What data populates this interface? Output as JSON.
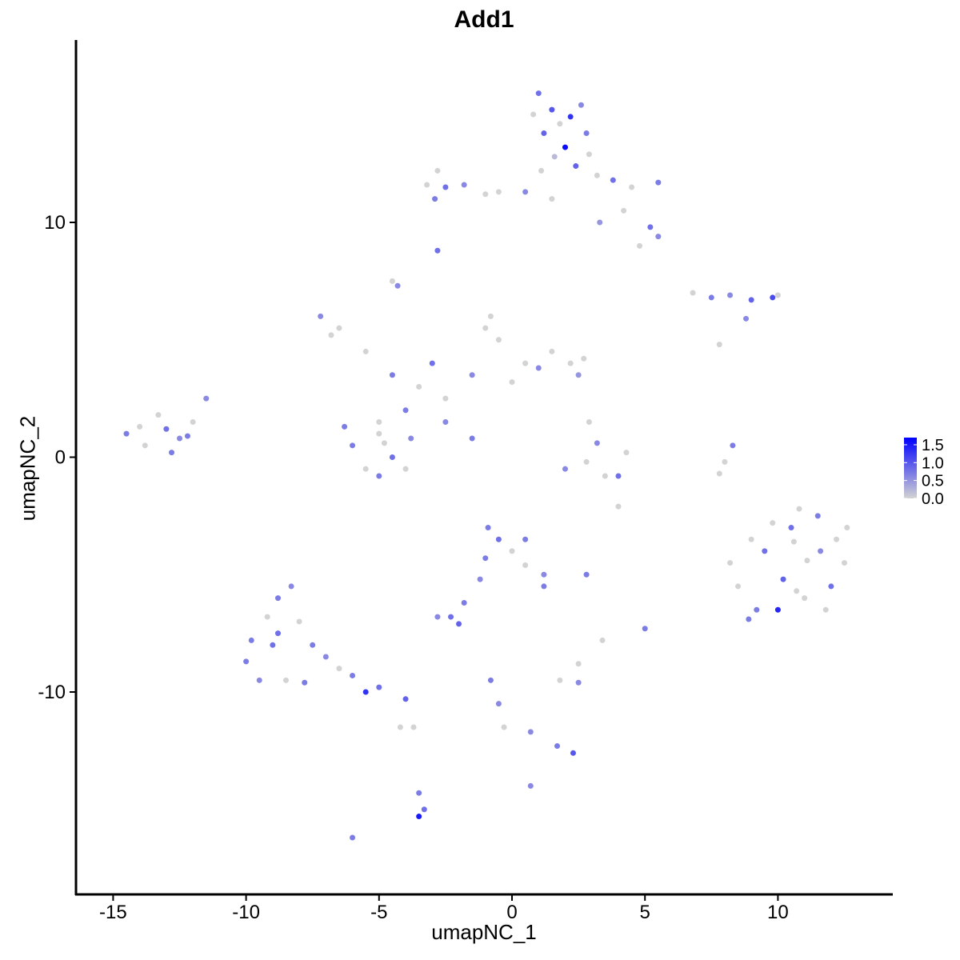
{
  "chart_data": {
    "type": "scatter",
    "title": "Add1",
    "xlabel": "umapNC_1",
    "ylabel": "umapNC_2",
    "xlim": [
      -16.4,
      14.3
    ],
    "ylim": [
      -18.6,
      17.8
    ],
    "xticks": [
      -15,
      -10,
      -5,
      0,
      5,
      10
    ],
    "yticks": [
      -10,
      0,
      10
    ],
    "xtick_labels": [
      "-15",
      "-10",
      "-5",
      "0",
      "5",
      "10"
    ],
    "ytick_labels": [
      "-10",
      "0",
      "10"
    ],
    "grid": false,
    "color_scale": {
      "low": "#D3D3D3",
      "high": "#0000FF",
      "min": 0,
      "max": 1.7
    },
    "legend": {
      "placement": "right",
      "ticks": [
        0.0,
        0.5,
        1.0,
        1.5
      ],
      "tick_labels": [
        "0.0",
        "0.5",
        "1.0",
        "1.5"
      ]
    },
    "points": [
      [
        1.0,
        15.5,
        0.8
      ],
      [
        1.5,
        14.8,
        1.0
      ],
      [
        2.2,
        14.5,
        1.3
      ],
      [
        2.6,
        15.0,
        0.6
      ],
      [
        1.2,
        13.8,
        0.9
      ],
      [
        2.0,
        13.2,
        1.6
      ],
      [
        2.8,
        13.8,
        0.7
      ],
      [
        1.6,
        12.8,
        0.2
      ],
      [
        2.4,
        12.4,
        0.9
      ],
      [
        3.2,
        12.0,
        0.0
      ],
      [
        3.8,
        11.8,
        0.8
      ],
      [
        4.5,
        11.5,
        0.0
      ],
      [
        5.5,
        11.7,
        0.7
      ],
      [
        4.2,
        10.5,
        0.0
      ],
      [
        5.2,
        9.8,
        0.8
      ],
      [
        5.5,
        9.4,
        0.6
      ],
      [
        4.8,
        9.0,
        0.0
      ],
      [
        3.3,
        10.0,
        0.5
      ],
      [
        1.5,
        11.0,
        0.0
      ],
      [
        0.5,
        11.3,
        0.6
      ],
      [
        -0.5,
        11.3,
        0.0
      ],
      [
        -1.0,
        11.2,
        0.0
      ],
      [
        1.8,
        14.2,
        0.0
      ],
      [
        0.8,
        14.6,
        0.0
      ],
      [
        2.9,
        12.9,
        0.0
      ],
      [
        1.1,
        12.2,
        0.0
      ],
      [
        -2.8,
        12.2,
        0.0
      ],
      [
        -2.5,
        11.5,
        0.8
      ],
      [
        -1.8,
        11.6,
        0.6
      ],
      [
        -2.9,
        11.0,
        0.7
      ],
      [
        -3.2,
        11.6,
        0.0
      ],
      [
        -2.8,
        8.8,
        0.8
      ],
      [
        -4.5,
        7.5,
        0.0
      ],
      [
        -4.3,
        7.3,
        0.6
      ],
      [
        6.8,
        7.0,
        0.0
      ],
      [
        7.5,
        6.8,
        0.7
      ],
      [
        8.2,
        6.9,
        0.6
      ],
      [
        9.0,
        6.7,
        0.9
      ],
      [
        9.8,
        6.8,
        1.1
      ],
      [
        8.8,
        5.9,
        0.6
      ],
      [
        10.0,
        6.9,
        0.0
      ],
      [
        -7.2,
        6.0,
        0.6
      ],
      [
        -6.5,
        5.5,
        0.0
      ],
      [
        -5.5,
        4.5,
        0.0
      ],
      [
        -4.5,
        3.5,
        0.7
      ],
      [
        -3.5,
        3.0,
        0.0
      ],
      [
        -2.5,
        2.5,
        0.0
      ],
      [
        -1.5,
        3.5,
        0.6
      ],
      [
        -1.0,
        5.5,
        0.0
      ],
      [
        -0.5,
        5.0,
        0.0
      ],
      [
        0.5,
        4.0,
        0.0
      ],
      [
        1.5,
        4.5,
        0.0
      ],
      [
        2.2,
        4.0,
        0.0
      ],
      [
        2.7,
        4.2,
        0.0
      ],
      [
        2.5,
        3.5,
        0.5
      ],
      [
        0.0,
        3.2,
        0.0
      ],
      [
        -4.0,
        2.0,
        0.7
      ],
      [
        -5.0,
        1.5,
        0.0
      ],
      [
        -6.8,
        5.2,
        0.0
      ],
      [
        -3.0,
        4.0,
        0.8
      ],
      [
        1.0,
        3.8,
        0.6
      ],
      [
        -0.8,
        6.0,
        0.0
      ],
      [
        -6.0,
        0.5,
        0.7
      ],
      [
        -5.5,
        -0.5,
        0.0
      ],
      [
        -4.5,
        0.0,
        0.8
      ],
      [
        -3.8,
        0.8,
        0.6
      ],
      [
        -5.0,
        1.0,
        0.0
      ],
      [
        -6.3,
        1.3,
        0.7
      ],
      [
        -4.0,
        -0.5,
        0.0
      ],
      [
        -5.0,
        -0.8,
        0.7
      ],
      [
        -4.8,
        0.6,
        0.0
      ],
      [
        -2.5,
        1.5,
        0.6
      ],
      [
        -1.5,
        0.8,
        0.7
      ],
      [
        -14.5,
        1.0,
        0.7
      ],
      [
        -13.8,
        0.5,
        0.0
      ],
      [
        -13.0,
        1.2,
        0.8
      ],
      [
        -12.5,
        0.8,
        0.6
      ],
      [
        -12.0,
        1.5,
        0.0
      ],
      [
        -13.3,
        1.8,
        0.0
      ],
      [
        -12.8,
        0.2,
        0.7
      ],
      [
        -11.5,
        2.5,
        0.6
      ],
      [
        -14.0,
        1.3,
        0.0
      ],
      [
        -12.2,
        0.9,
        0.7
      ],
      [
        2.8,
        -0.2,
        0.0
      ],
      [
        3.5,
        -0.8,
        0.0
      ],
      [
        2.0,
        -0.5,
        0.6
      ],
      [
        4.0,
        -0.8,
        0.8
      ],
      [
        3.2,
        0.6,
        0.6
      ],
      [
        4.3,
        0.2,
        0.0
      ],
      [
        2.9,
        1.5,
        0.0
      ],
      [
        8.3,
        0.5,
        0.7
      ],
      [
        8.0,
        -0.2,
        0.0
      ],
      [
        7.8,
        -0.7,
        0.0
      ],
      [
        11.1,
        -4.4,
        0.0
      ],
      [
        10.5,
        -3.0,
        0.8
      ],
      [
        11.5,
        -2.5,
        0.7
      ],
      [
        12.2,
        -3.5,
        0.0
      ],
      [
        12.5,
        -4.5,
        0.0
      ],
      [
        12.0,
        -5.5,
        0.8
      ],
      [
        11.0,
        -6.0,
        0.0
      ],
      [
        10.0,
        -6.5,
        1.4
      ],
      [
        9.2,
        -6.5,
        0.7
      ],
      [
        8.5,
        -5.5,
        0.0
      ],
      [
        8.2,
        -4.5,
        0.0
      ],
      [
        9.5,
        -4.0,
        0.8
      ],
      [
        10.2,
        -5.2,
        0.9
      ],
      [
        11.6,
        -4.0,
        0.6
      ],
      [
        10.8,
        -2.2,
        0.0
      ],
      [
        9.8,
        -2.8,
        0.0
      ],
      [
        12.6,
        -3.0,
        0.0
      ],
      [
        10.6,
        -3.6,
        0.0
      ],
      [
        11.8,
        -6.5,
        0.0
      ],
      [
        9.0,
        -3.5,
        0.0
      ],
      [
        8.9,
        -6.9,
        0.7
      ],
      [
        10.7,
        -5.7,
        0.0
      ],
      [
        -0.5,
        -3.5,
        0.8
      ],
      [
        0.5,
        -3.5,
        0.7
      ],
      [
        0.0,
        -4.0,
        0.0
      ],
      [
        -1.0,
        -4.3,
        0.7
      ],
      [
        0.5,
        -4.6,
        0.0
      ],
      [
        1.2,
        -5.0,
        0.6
      ],
      [
        1.2,
        -5.5,
        0.7
      ],
      [
        -1.2,
        -5.2,
        0.6
      ],
      [
        -1.8,
        -6.2,
        0.7
      ],
      [
        -2.3,
        -6.8,
        0.8
      ],
      [
        -2.8,
        -6.8,
        0.6
      ],
      [
        -2.0,
        -7.1,
        0.9
      ],
      [
        -0.9,
        -3.0,
        0.7
      ],
      [
        -10.0,
        -8.7,
        0.7
      ],
      [
        -9.5,
        -9.5,
        0.6
      ],
      [
        -9.0,
        -8.0,
        0.8
      ],
      [
        -8.8,
        -6.0,
        0.7
      ],
      [
        -8.3,
        -5.5,
        0.6
      ],
      [
        -8.0,
        -7.0,
        0.0
      ],
      [
        -7.5,
        -8.0,
        0.7
      ],
      [
        -8.5,
        -9.5,
        0.0
      ],
      [
        -7.0,
        -8.5,
        0.6
      ],
      [
        -6.0,
        -9.3,
        0.7
      ],
      [
        -5.0,
        -9.8,
        0.8
      ],
      [
        -4.0,
        -10.3,
        0.9
      ],
      [
        -9.8,
        -7.8,
        0.7
      ],
      [
        -8.8,
        -7.5,
        0.8
      ],
      [
        -9.2,
        -6.8,
        0.0
      ],
      [
        -7.8,
        -9.6,
        0.7
      ],
      [
        -6.5,
        -9.0,
        0.0
      ],
      [
        -5.5,
        -10.0,
        1.3
      ],
      [
        2.8,
        -5.0,
        0.7
      ],
      [
        5.0,
        -7.3,
        0.7
      ],
      [
        3.4,
        -7.8,
        0.0
      ],
      [
        1.8,
        -9.5,
        0.0
      ],
      [
        2.5,
        -9.6,
        0.6
      ],
      [
        2.5,
        -8.8,
        0.0
      ],
      [
        -0.8,
        -9.5,
        0.7
      ],
      [
        -0.5,
        -10.5,
        0.6
      ],
      [
        -0.3,
        -11.5,
        0.0
      ],
      [
        0.7,
        -11.7,
        0.6
      ],
      [
        1.7,
        -12.3,
        0.7
      ],
      [
        2.3,
        -12.6,
        1.0
      ],
      [
        -3.5,
        -14.3,
        0.7
      ],
      [
        -3.3,
        -15.0,
        0.8
      ],
      [
        -3.5,
        -15.3,
        1.5
      ],
      [
        0.7,
        -14.0,
        0.6
      ],
      [
        -6.0,
        -16.2,
        0.7
      ],
      [
        -4.2,
        -11.5,
        0.0
      ],
      [
        -3.7,
        -11.5,
        0.0
      ],
      [
        7.8,
        4.8,
        0.0
      ],
      [
        4.0,
        -2.1,
        0.0
      ]
    ]
  }
}
